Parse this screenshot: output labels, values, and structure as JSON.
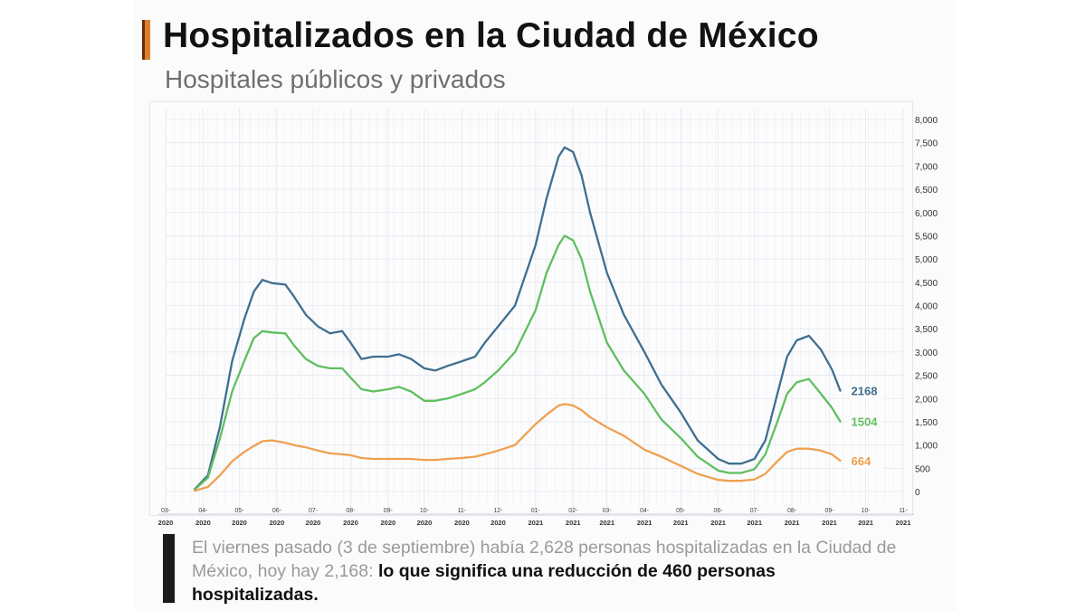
{
  "header": {
    "title": "Hospitalizados en la Ciudad de México",
    "subtitle": "Hospitales públicos y privados"
  },
  "note": {
    "plain": "El viernes pasado (3 de septiembre) había 2,628 personas hospitalizadas en la Ciudad de México, hoy hay 2,168: ",
    "bold": "lo que significa una reducción de 460 personas hospitalizadas."
  },
  "chart_data": {
    "type": "line",
    "title": "Hospitalizados en la Ciudad de México",
    "subtitle": "Hospitales públicos y privados",
    "xlabel": "",
    "ylabel": "",
    "grid": true,
    "legend": "none",
    "y_axis_side": "right",
    "ylim": [
      0,
      8000
    ],
    "y_ticks": [
      0,
      500,
      1000,
      1500,
      2000,
      2500,
      3000,
      3500,
      4000,
      4500,
      5000,
      5500,
      6000,
      6500,
      7000,
      7500,
      8000
    ],
    "y_tick_labels": [
      "0",
      "500",
      "1,000",
      "1,500",
      "2,000",
      "2,500",
      "3,000",
      "3,500",
      "4,000",
      "4,500",
      "5,000",
      "5,500",
      "6,000",
      "6,500",
      "7,000",
      "7,500",
      "8,000"
    ],
    "x_range": [
      "2020-03-01",
      "2021-11-01"
    ],
    "x_tick_labels": [
      {
        "date": "2020-03-01",
        "month": "03-",
        "year": "2020"
      },
      {
        "date": "2020-04-01",
        "month": "04-",
        "year": "2020"
      },
      {
        "date": "2020-05-01",
        "month": "05-",
        "year": "2020"
      },
      {
        "date": "2020-06-01",
        "month": "06-",
        "year": "2020"
      },
      {
        "date": "2020-07-01",
        "month": "07-",
        "year": "2020"
      },
      {
        "date": "2020-08-01",
        "month": "08-",
        "year": "2020"
      },
      {
        "date": "2020-09-01",
        "month": "09-",
        "year": "2020"
      },
      {
        "date": "2020-10-01",
        "month": "10-",
        "year": "2020"
      },
      {
        "date": "2020-11-01",
        "month": "11-",
        "year": "2020"
      },
      {
        "date": "2020-12-01",
        "month": "12-",
        "year": "2020"
      },
      {
        "date": "2021-01-01",
        "month": "01-",
        "year": "2021"
      },
      {
        "date": "2021-02-01",
        "month": "02-",
        "year": "2021"
      },
      {
        "date": "2021-03-01",
        "month": "03-",
        "year": "2021"
      },
      {
        "date": "2021-04-01",
        "month": "04-",
        "year": "2021"
      },
      {
        "date": "2021-05-01",
        "month": "05-",
        "year": "2021"
      },
      {
        "date": "2021-06-01",
        "month": "06-",
        "year": "2021"
      },
      {
        "date": "2021-07-01",
        "month": "07-",
        "year": "2021"
      },
      {
        "date": "2021-08-01",
        "month": "08-",
        "year": "2021"
      },
      {
        "date": "2021-09-01",
        "month": "09-",
        "year": "2021"
      },
      {
        "date": "2021-10-01",
        "month": "10-",
        "year": "2021"
      },
      {
        "date": "2021-11-01",
        "month": "11-",
        "year": "2021"
      }
    ],
    "series": [
      {
        "color": "#3f6f8f",
        "end_label": "2168",
        "points": [
          [
            "2020-03-25",
            50
          ],
          [
            "2020-04-05",
            350
          ],
          [
            "2020-04-15",
            1400
          ],
          [
            "2020-04-25",
            2800
          ],
          [
            "2020-05-05",
            3700
          ],
          [
            "2020-05-13",
            4300
          ],
          [
            "2020-05-20",
            4550
          ],
          [
            "2020-05-28",
            4480
          ],
          [
            "2020-06-08",
            4450
          ],
          [
            "2020-06-15",
            4200
          ],
          [
            "2020-06-25",
            3800
          ],
          [
            "2020-07-05",
            3550
          ],
          [
            "2020-07-15",
            3400
          ],
          [
            "2020-07-25",
            3450
          ],
          [
            "2020-08-01",
            3200
          ],
          [
            "2020-08-10",
            2850
          ],
          [
            "2020-08-20",
            2900
          ],
          [
            "2020-09-01",
            2900
          ],
          [
            "2020-09-10",
            2950
          ],
          [
            "2020-09-20",
            2850
          ],
          [
            "2020-10-01",
            2650
          ],
          [
            "2020-10-10",
            2600
          ],
          [
            "2020-10-20",
            2700
          ],
          [
            "2020-11-01",
            2800
          ],
          [
            "2020-11-12",
            2900
          ],
          [
            "2020-11-20",
            3200
          ],
          [
            "2020-12-01",
            3550
          ],
          [
            "2020-12-15",
            4000
          ],
          [
            "2021-01-01",
            5300
          ],
          [
            "2021-01-10",
            6300
          ],
          [
            "2021-01-20",
            7200
          ],
          [
            "2021-01-25",
            7400
          ],
          [
            "2021-02-01",
            7300
          ],
          [
            "2021-02-08",
            6800
          ],
          [
            "2021-02-15",
            6000
          ],
          [
            "2021-03-01",
            4700
          ],
          [
            "2021-03-15",
            3800
          ],
          [
            "2021-04-01",
            3000
          ],
          [
            "2021-04-15",
            2300
          ],
          [
            "2021-05-01",
            1700
          ],
          [
            "2021-05-15",
            1100
          ],
          [
            "2021-06-01",
            700
          ],
          [
            "2021-06-10",
            600
          ],
          [
            "2021-06-20",
            600
          ],
          [
            "2021-07-01",
            700
          ],
          [
            "2021-07-10",
            1100
          ],
          [
            "2021-07-20",
            2100
          ],
          [
            "2021-07-28",
            2900
          ],
          [
            "2021-08-05",
            3250
          ],
          [
            "2021-08-15",
            3350
          ],
          [
            "2021-08-25",
            3050
          ],
          [
            "2021-09-03",
            2628
          ],
          [
            "2021-09-10",
            2168
          ]
        ]
      },
      {
        "color": "#5fbf5f",
        "end_label": "1504",
        "points": [
          [
            "2020-03-25",
            40
          ],
          [
            "2020-04-05",
            300
          ],
          [
            "2020-04-15",
            1150
          ],
          [
            "2020-04-25",
            2150
          ],
          [
            "2020-05-05",
            2800
          ],
          [
            "2020-05-13",
            3300
          ],
          [
            "2020-05-20",
            3450
          ],
          [
            "2020-05-28",
            3420
          ],
          [
            "2020-06-08",
            3400
          ],
          [
            "2020-06-15",
            3150
          ],
          [
            "2020-06-25",
            2850
          ],
          [
            "2020-07-05",
            2700
          ],
          [
            "2020-07-15",
            2650
          ],
          [
            "2020-07-25",
            2650
          ],
          [
            "2020-08-01",
            2450
          ],
          [
            "2020-08-10",
            2200
          ],
          [
            "2020-08-20",
            2150
          ],
          [
            "2020-09-01",
            2200
          ],
          [
            "2020-09-10",
            2250
          ],
          [
            "2020-09-20",
            2150
          ],
          [
            "2020-10-01",
            1950
          ],
          [
            "2020-10-10",
            1950
          ],
          [
            "2020-10-20",
            2000
          ],
          [
            "2020-11-01",
            2100
          ],
          [
            "2020-11-12",
            2200
          ],
          [
            "2020-11-20",
            2350
          ],
          [
            "2020-12-01",
            2600
          ],
          [
            "2020-12-15",
            3000
          ],
          [
            "2021-01-01",
            3900
          ],
          [
            "2021-01-10",
            4700
          ],
          [
            "2021-01-20",
            5300
          ],
          [
            "2021-01-25",
            5500
          ],
          [
            "2021-02-01",
            5400
          ],
          [
            "2021-02-08",
            5000
          ],
          [
            "2021-02-15",
            4300
          ],
          [
            "2021-03-01",
            3200
          ],
          [
            "2021-03-15",
            2600
          ],
          [
            "2021-04-01",
            2100
          ],
          [
            "2021-04-15",
            1550
          ],
          [
            "2021-05-01",
            1150
          ],
          [
            "2021-05-15",
            750
          ],
          [
            "2021-06-01",
            450
          ],
          [
            "2021-06-10",
            400
          ],
          [
            "2021-06-20",
            400
          ],
          [
            "2021-07-01",
            480
          ],
          [
            "2021-07-10",
            800
          ],
          [
            "2021-07-20",
            1500
          ],
          [
            "2021-07-28",
            2100
          ],
          [
            "2021-08-05",
            2350
          ],
          [
            "2021-08-15",
            2420
          ],
          [
            "2021-08-25",
            2100
          ],
          [
            "2021-09-03",
            1800
          ],
          [
            "2021-09-10",
            1504
          ]
        ]
      },
      {
        "color": "#f0a050",
        "end_label": "664",
        "points": [
          [
            "2020-03-25",
            15
          ],
          [
            "2020-04-05",
            100
          ],
          [
            "2020-04-15",
            350
          ],
          [
            "2020-04-25",
            650
          ],
          [
            "2020-05-05",
            850
          ],
          [
            "2020-05-13",
            980
          ],
          [
            "2020-05-20",
            1080
          ],
          [
            "2020-05-28",
            1100
          ],
          [
            "2020-06-08",
            1050
          ],
          [
            "2020-06-15",
            1000
          ],
          [
            "2020-06-25",
            950
          ],
          [
            "2020-07-05",
            880
          ],
          [
            "2020-07-15",
            820
          ],
          [
            "2020-07-25",
            800
          ],
          [
            "2020-08-01",
            780
          ],
          [
            "2020-08-10",
            720
          ],
          [
            "2020-08-20",
            700
          ],
          [
            "2020-09-01",
            700
          ],
          [
            "2020-09-10",
            700
          ],
          [
            "2020-09-20",
            700
          ],
          [
            "2020-10-01",
            680
          ],
          [
            "2020-10-10",
            680
          ],
          [
            "2020-10-20",
            700
          ],
          [
            "2020-11-01",
            720
          ],
          [
            "2020-11-12",
            750
          ],
          [
            "2020-11-20",
            800
          ],
          [
            "2020-12-01",
            880
          ],
          [
            "2020-12-15",
            1000
          ],
          [
            "2021-01-01",
            1450
          ],
          [
            "2021-01-10",
            1650
          ],
          [
            "2021-01-20",
            1850
          ],
          [
            "2021-01-25",
            1880
          ],
          [
            "2021-02-01",
            1850
          ],
          [
            "2021-02-08",
            1750
          ],
          [
            "2021-02-15",
            1600
          ],
          [
            "2021-03-01",
            1380
          ],
          [
            "2021-03-15",
            1200
          ],
          [
            "2021-04-01",
            900
          ],
          [
            "2021-04-15",
            750
          ],
          [
            "2021-05-01",
            550
          ],
          [
            "2021-05-15",
            380
          ],
          [
            "2021-06-01",
            250
          ],
          [
            "2021-06-10",
            230
          ],
          [
            "2021-06-20",
            230
          ],
          [
            "2021-07-01",
            260
          ],
          [
            "2021-07-10",
            380
          ],
          [
            "2021-07-20",
            650
          ],
          [
            "2021-07-28",
            850
          ],
          [
            "2021-08-05",
            920
          ],
          [
            "2021-08-15",
            920
          ],
          [
            "2021-08-25",
            880
          ],
          [
            "2021-09-03",
            800
          ],
          [
            "2021-09-10",
            664
          ]
        ]
      }
    ]
  }
}
